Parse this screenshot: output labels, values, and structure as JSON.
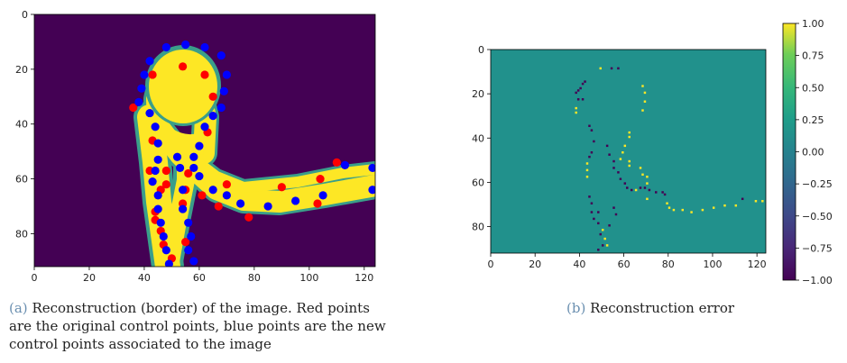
{
  "chart_data": [
    {
      "type": "heatmap",
      "panel": "(a)",
      "caption": "Reconstruction (border) of the image. Red points are the original control points, blue points are the new control points associated to the image",
      "x_ticks": [
        0,
        20,
        40,
        60,
        80,
        100,
        120
      ],
      "y_ticks": [
        0,
        20,
        40,
        60,
        80
      ],
      "xlim": [
        0,
        124
      ],
      "ylim": [
        92,
        0
      ],
      "colors": {
        "background": "#440154",
        "shape": "#fde725",
        "border": "#3a9e8a",
        "original_points": "#ff0000",
        "new_points": "#0000ff"
      },
      "original_points": [
        [
          54,
          19
        ],
        [
          43,
          22
        ],
        [
          62,
          22
        ],
        [
          36,
          34
        ],
        [
          65,
          30
        ],
        [
          63,
          43
        ],
        [
          43,
          46
        ],
        [
          42,
          57
        ],
        [
          48,
          57
        ],
        [
          48,
          62
        ],
        [
          56,
          58
        ],
        [
          55,
          64
        ],
        [
          46,
          64
        ],
        [
          61,
          66
        ],
        [
          54,
          69
        ],
        [
          44,
          72
        ],
        [
          67,
          70
        ],
        [
          70,
          62
        ],
        [
          78,
          74
        ],
        [
          46,
          79
        ],
        [
          47,
          84
        ],
        [
          55,
          83
        ],
        [
          50,
          89
        ],
        [
          44,
          75
        ],
        [
          90,
          63
        ],
        [
          103,
          69
        ],
        [
          104,
          60
        ],
        [
          110,
          54
        ]
      ],
      "new_points": [
        [
          55,
          11
        ],
        [
          48,
          12
        ],
        [
          62,
          12
        ],
        [
          42,
          17
        ],
        [
          68,
          15
        ],
        [
          40,
          22
        ],
        [
          70,
          22
        ],
        [
          39,
          27
        ],
        [
          69,
          28
        ],
        [
          38,
          32
        ],
        [
          68,
          34
        ],
        [
          42,
          36
        ],
        [
          65,
          37
        ],
        [
          44,
          41
        ],
        [
          62,
          41
        ],
        [
          45,
          47
        ],
        [
          60,
          48
        ],
        [
          45,
          53
        ],
        [
          58,
          52
        ],
        [
          44,
          57
        ],
        [
          52,
          52
        ],
        [
          58,
          56
        ],
        [
          43,
          61
        ],
        [
          53,
          56
        ],
        [
          60,
          59
        ],
        [
          45,
          66
        ],
        [
          54,
          64
        ],
        [
          65,
          64
        ],
        [
          45,
          71
        ],
        [
          54,
          71
        ],
        [
          70,
          66
        ],
        [
          46,
          76
        ],
        [
          56,
          76
        ],
        [
          75,
          69
        ],
        [
          47,
          81
        ],
        [
          57,
          81
        ],
        [
          85,
          70
        ],
        [
          48,
          86
        ],
        [
          56,
          86
        ],
        [
          95,
          68
        ],
        [
          49,
          91
        ],
        [
          58,
          90
        ],
        [
          105,
          66
        ],
        [
          123,
          56
        ],
        [
          123,
          64
        ],
        [
          113,
          55
        ]
      ]
    },
    {
      "type": "heatmap",
      "panel": "(b)",
      "caption": "Reconstruction error",
      "x_ticks": [
        0,
        20,
        40,
        60,
        80,
        100,
        120
      ],
      "y_ticks": [
        0,
        20,
        40,
        60,
        80
      ],
      "xlim": [
        0,
        124
      ],
      "ylim": [
        92,
        0
      ],
      "colorbar": {
        "min": -1.0,
        "max": 1.0,
        "ticks": [
          "1.00",
          "0.75",
          "0.50",
          "0.25",
          "0.00",
          "−0.25",
          "−0.50",
          "−0.75",
          "−1.00"
        ]
      },
      "colors": {
        "background": "#21918c",
        "positive": "#fde725",
        "negative": "#440154"
      },
      "positive_pixels": [
        [
          49,
          8
        ],
        [
          68,
          16
        ],
        [
          69,
          19
        ],
        [
          69,
          23
        ],
        [
          68,
          27
        ],
        [
          38,
          26
        ],
        [
          38,
          28
        ],
        [
          62,
          37
        ],
        [
          62,
          39
        ],
        [
          60,
          43
        ],
        [
          59,
          46
        ],
        [
          58,
          49
        ],
        [
          43,
          51
        ],
        [
          43,
          54
        ],
        [
          43,
          57
        ],
        [
          62,
          50
        ],
        [
          62,
          52
        ],
        [
          67,
          53
        ],
        [
          68,
          56
        ],
        [
          70,
          57
        ],
        [
          70,
          60
        ],
        [
          65,
          63
        ],
        [
          70,
          67
        ],
        [
          79,
          69
        ],
        [
          80,
          71
        ],
        [
          82,
          72
        ],
        [
          86,
          72
        ],
        [
          90,
          73
        ],
        [
          95,
          72
        ],
        [
          100,
          71
        ],
        [
          105,
          70
        ],
        [
          110,
          70
        ],
        [
          119,
          68
        ],
        [
          122,
          68
        ],
        [
          50,
          81
        ],
        [
          51,
          85
        ],
        [
          52,
          88
        ]
      ],
      "negative_pixels": [
        [
          54,
          8
        ],
        [
          57,
          8
        ],
        [
          38,
          19
        ],
        [
          39,
          18
        ],
        [
          40,
          17
        ],
        [
          41,
          15
        ],
        [
          42,
          14
        ],
        [
          41,
          22
        ],
        [
          39,
          22
        ],
        [
          44,
          34
        ],
        [
          45,
          36
        ],
        [
          46,
          41
        ],
        [
          45,
          46
        ],
        [
          44,
          48
        ],
        [
          52,
          43
        ],
        [
          53,
          47
        ],
        [
          55,
          50
        ],
        [
          55,
          53
        ],
        [
          57,
          55
        ],
        [
          58,
          58
        ],
        [
          60,
          60
        ],
        [
          61,
          62
        ],
        [
          63,
          63
        ],
        [
          67,
          62
        ],
        [
          69,
          62
        ],
        [
          71,
          63
        ],
        [
          74,
          64
        ],
        [
          77,
          64
        ],
        [
          78,
          65
        ],
        [
          44,
          66
        ],
        [
          45,
          69
        ],
        [
          45,
          73
        ],
        [
          46,
          76
        ],
        [
          48,
          78
        ],
        [
          49,
          83
        ],
        [
          50,
          88
        ],
        [
          48,
          90
        ],
        [
          55,
          71
        ],
        [
          56,
          74
        ],
        [
          48,
          73
        ],
        [
          53,
          79
        ],
        [
          113,
          67
        ]
      ]
    }
  ]
}
